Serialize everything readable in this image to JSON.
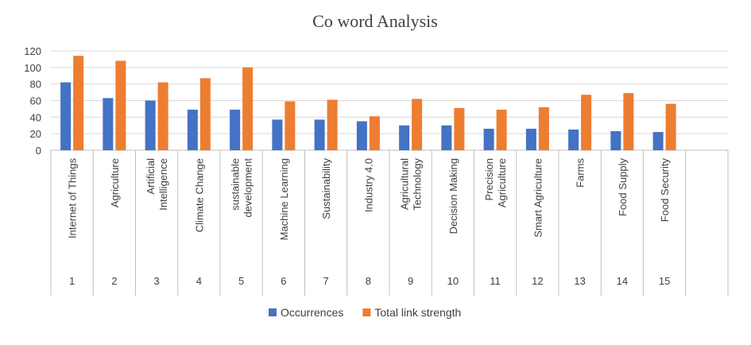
{
  "chart_data": {
    "type": "bar",
    "title": "Co word Analysis",
    "categories": [
      "Internet of Things",
      "Agriculture",
      "Artificial Intelligence",
      "Climate Change",
      "sustainable development",
      "Machine Learning",
      "Sustainability",
      "Industry 4.0",
      "Agricultural Technology",
      "Decision Making",
      "Precision Agriculture",
      "Smart Agriculture",
      "Farms",
      "Food Supply",
      "Food Security"
    ],
    "category_lines": [
      [
        "Internet of Things"
      ],
      [
        "Agriculture"
      ],
      [
        "Artificial",
        "Intelligence"
      ],
      [
        "Climate Change"
      ],
      [
        "sustainable",
        "development"
      ],
      [
        "Machine Learning"
      ],
      [
        "Sustainability"
      ],
      [
        "Industry 4.0"
      ],
      [
        "Agricultural",
        "Technology"
      ],
      [
        "Decision Making"
      ],
      [
        "Precision",
        "Agriculture"
      ],
      [
        "Smart Agriculture"
      ],
      [
        "Farms"
      ],
      [
        "Food Supply"
      ],
      [
        "Food Security"
      ]
    ],
    "group_labels": [
      "1",
      "2",
      "3",
      "4",
      "5",
      "6",
      "7",
      "8",
      "9",
      "10",
      "11",
      "12",
      "13",
      "14",
      "15"
    ],
    "series": [
      {
        "name": "Occurrences",
        "color": "#4472c4",
        "values": [
          82,
          63,
          60,
          49,
          49,
          37,
          37,
          35,
          30,
          30,
          26,
          26,
          25,
          23,
          22
        ]
      },
      {
        "name": "Total link strength",
        "color": "#ed7d31",
        "values": [
          114,
          108,
          82,
          87,
          100,
          59,
          61,
          41,
          62,
          51,
          49,
          52,
          67,
          69,
          56
        ]
      }
    ],
    "y_ticks": [
      "0",
      "20",
      "40",
      "60",
      "80",
      "100",
      "120"
    ],
    "ylim": [
      0,
      120
    ],
    "grid": true,
    "legend_position": "bottom"
  }
}
